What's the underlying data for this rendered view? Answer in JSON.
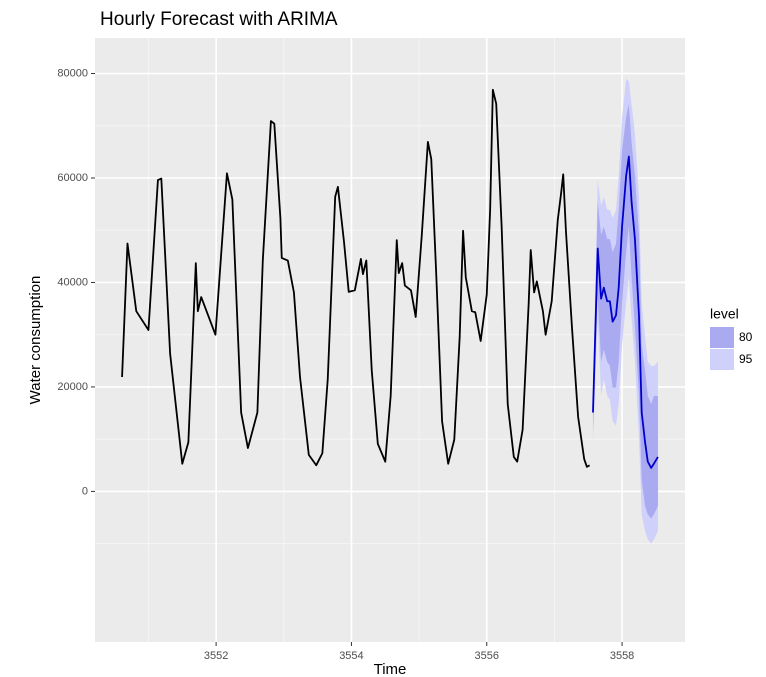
{
  "chart_data": {
    "type": "line",
    "title": "Hourly Forecast with ARIMA",
    "x_label": "Time",
    "y_label": "Water consumption",
    "xlim": [
      3550.21,
      3558.93
    ],
    "ylim": [
      -28830,
      86800
    ],
    "xticks": [
      3552,
      3554,
      3556,
      3558
    ],
    "yticks": [
      0,
      20000,
      40000,
      60000,
      80000
    ],
    "grid": true,
    "series": [
      {
        "color": "#000000",
        "x": [
          3550.61,
          3550.69,
          3550.82,
          3551.0,
          3551.14,
          3551.19,
          3551.32,
          3551.5,
          3551.59,
          3551.7,
          3551.73,
          3551.78,
          3551.99,
          3552.16,
          3552.24,
          3552.37,
          3552.47,
          3552.61,
          3552.69,
          3552.81,
          3552.86,
          3552.95,
          3552.97,
          3553.06,
          3553.15,
          3553.24,
          3553.37,
          3553.48,
          3553.57,
          3553.65,
          3553.76,
          3553.8,
          3553.89,
          3553.96,
          3554.05,
          3554.14,
          3554.17,
          3554.22,
          3554.3,
          3554.39,
          3554.5,
          3554.58,
          3554.67,
          3554.7,
          3554.75,
          3554.79,
          3554.88,
          3554.95,
          3555.04,
          3555.13,
          3555.18,
          3555.25,
          3555.34,
          3555.43,
          3555.52,
          3555.6,
          3555.65,
          3555.69,
          3555.78,
          3555.83,
          3555.91,
          3556.0,
          3556.05,
          3556.09,
          3556.14,
          3556.22,
          3556.31,
          3556.4,
          3556.45,
          3556.53,
          3556.62,
          3556.65,
          3556.7,
          3556.74,
          3556.83,
          3556.87,
          3556.96,
          3557.05,
          3557.1,
          3557.13,
          3557.17,
          3557.26,
          3557.35,
          3557.44,
          3557.48,
          3557.52
        ],
        "values": [
          21900,
          47450,
          34500,
          30900,
          59600,
          59900,
          26400,
          5300,
          9400,
          43700,
          34500,
          37200,
          30000,
          60900,
          55900,
          15100,
          8300,
          15100,
          44200,
          70900,
          70400,
          52300,
          44700,
          44200,
          38100,
          21900,
          7000,
          5000,
          7300,
          21500,
          56400,
          58300,
          47800,
          38200,
          38500,
          44500,
          41600,
          44200,
          23200,
          9100,
          5700,
          18300,
          48100,
          41800,
          43700,
          39400,
          38500,
          33400,
          49100,
          66900,
          63600,
          42600,
          13400,
          5300,
          9900,
          29600,
          49900,
          41000,
          34500,
          34300,
          28800,
          37700,
          53900,
          76900,
          74200,
          50700,
          16700,
          6600,
          5700,
          11800,
          36100,
          46200,
          38100,
          40200,
          34500,
          30000,
          36400,
          52000,
          57200,
          60700,
          49900,
          31300,
          14300,
          6200,
          4700,
          5000
        ]
      },
      {
        "color": "#0000cc",
        "x": [
          3557.57,
          3557.64,
          3557.69,
          3557.73,
          3557.78,
          3557.82,
          3557.86,
          3557.91,
          3557.95,
          3558.0,
          3558.06,
          3558.1,
          3558.14,
          3558.19,
          3558.25,
          3558.29,
          3558.34,
          3558.38,
          3558.43,
          3558.47,
          3558.53
        ],
        "values": [
          15100,
          46500,
          36900,
          39000,
          36400,
          36400,
          32500,
          33700,
          39000,
          50700,
          60400,
          64100,
          55500,
          48300,
          33700,
          15100,
          9400,
          5700,
          4500,
          5300,
          6600
        ]
      }
    ],
    "intervals": {
      "title": "level",
      "bands": [
        {
          "name": "80",
          "color": "#aaaaf0",
          "lower": [
            11800,
            37700,
            24800,
            27200,
            24800,
            24000,
            19900,
            19900,
            24800,
            36100,
            45800,
            50700,
            41000,
            31300,
            18300,
            2100,
            -2800,
            -4400,
            -5200,
            -4400,
            -2800
          ],
          "upper": [
            18300,
            55500,
            49100,
            50700,
            48300,
            48300,
            45800,
            47400,
            53900,
            65300,
            71700,
            74200,
            66900,
            60400,
            49100,
            28000,
            23200,
            18300,
            16700,
            18300,
            18300
          ]
        },
        {
          "name": "95",
          "color": "#d0d1fb",
          "lower": [
            9400,
            32900,
            18300,
            21500,
            18300,
            17500,
            13400,
            12600,
            16700,
            28000,
            36100,
            41000,
            32900,
            24800,
            10200,
            -4400,
            -7600,
            -9200,
            -10000,
            -9200,
            -7600
          ],
          "upper": [
            19900,
            59600,
            54700,
            56400,
            53900,
            53900,
            52300,
            53900,
            60400,
            71700,
            79000,
            78500,
            74200,
            68500,
            56400,
            36100,
            29600,
            24800,
            24000,
            24000,
            24800
          ]
        }
      ]
    }
  }
}
